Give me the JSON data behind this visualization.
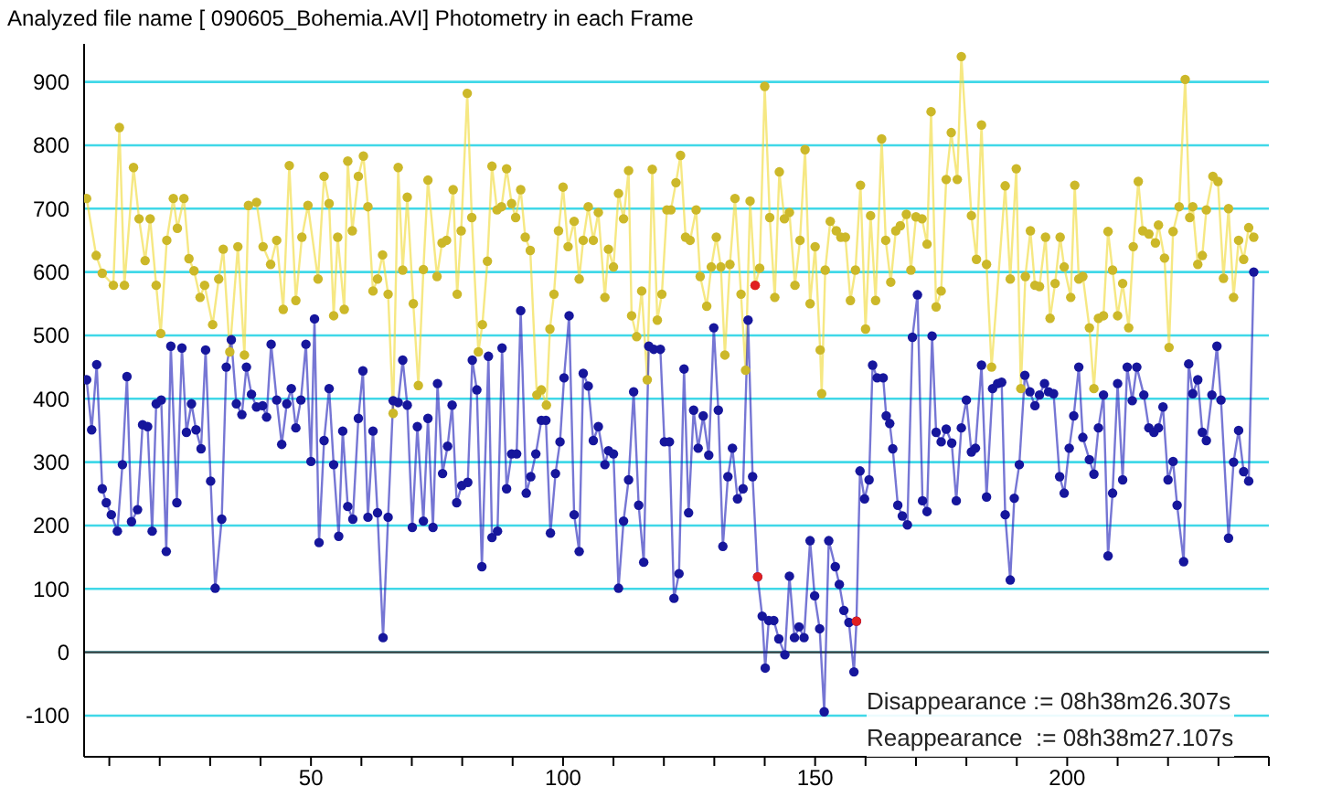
{
  "chart_data": {
    "type": "line",
    "title": "Analyzed file name [ 090605_Bohemia.AVI]   Photometry in each Frame",
    "xlim": [
      5,
      240
    ],
    "xticks": [
      {
        "value": 10,
        "label": null
      },
      {
        "value": 20,
        "label": null
      },
      {
        "value": 30,
        "label": null
      },
      {
        "value": 40,
        "label": null
      },
      50,
      {
        "value": 60,
        "label": null
      },
      {
        "value": 70,
        "label": null
      },
      {
        "value": 80,
        "label": null
      },
      {
        "value": 90,
        "label": null
      },
      100,
      {
        "value": 110,
        "label": null
      },
      {
        "value": 120,
        "label": null
      },
      {
        "value": 130,
        "label": null
      },
      {
        "value": 140,
        "label": null
      },
      150,
      {
        "value": 160,
        "label": null
      },
      {
        "value": 170,
        "label": null
      },
      {
        "value": 180,
        "label": null
      },
      {
        "value": 190,
        "label": null
      },
      200,
      {
        "value": 210,
        "label": null
      },
      {
        "value": 220,
        "label": null
      },
      {
        "value": 230,
        "label": null
      },
      {
        "value": 240,
        "label": null
      }
    ],
    "ylim": [
      -165,
      960
    ],
    "yticks": [
      -100,
      0,
      100,
      200,
      300,
      400,
      500,
      600,
      700,
      800,
      900
    ],
    "grid": "y",
    "marker": "circle",
    "line_style": "solid",
    "ref_lines": [
      {
        "axis": "y",
        "value": 0,
        "color": "#404040"
      }
    ],
    "annotations": [
      "Disappearance := 08h38m26.307s",
      "Reappearance  := 08h38m27.107s"
    ],
    "series": [
      {
        "color": "#f0d830",
        "x": [
          5.5,
          7.4,
          8.6,
          10.8,
          12,
          13,
          14.8,
          15.9,
          17.1,
          18.1,
          19.3,
          20.2,
          21.4,
          22.7,
          23.5,
          24.8,
          25.8,
          26.8,
          28,
          28.9,
          30.5,
          31.7,
          32.6,
          33.9,
          35.5,
          36.8,
          37.6,
          39.2,
          40.5,
          42,
          43.2,
          44.5,
          45.7,
          47,
          48.2,
          49.4,
          51.4,
          52.6,
          53.6,
          54.5,
          55.3,
          56.6,
          57.3,
          58.2,
          59.4,
          60.4,
          61.3,
          62.3,
          63.2,
          64.2,
          65.3,
          66.3,
          67.3,
          68.2,
          69.1,
          70.3,
          71.3,
          72.3,
          73.2,
          75,
          76,
          76.9,
          78.2,
          79,
          79.8,
          81,
          81.9,
          83.2,
          84,
          85,
          85.9,
          86.9,
          87.8,
          88.8,
          89.8,
          90.6,
          91.6,
          92.5,
          93.5,
          94.8,
          95.7,
          96.7,
          97.4,
          98.2,
          99.1,
          100,
          101,
          102.2,
          103.2,
          104,
          105,
          106,
          107,
          108.3,
          109,
          110,
          111,
          112,
          113,
          113.6,
          114.6,
          115.6,
          116.7,
          117.7,
          118.7,
          119.6,
          120.6,
          121.4,
          122.4,
          123.3,
          124.3,
          125.2,
          126.4,
          127.2,
          128.5,
          129.4,
          130.4,
          131.3,
          132.1,
          133.1,
          134.1,
          135.3,
          136.2,
          137.1,
          138.1,
          139,
          140,
          141,
          142,
          142.9,
          143.9,
          144.9,
          146,
          147,
          148,
          149,
          150,
          151,
          151.3,
          152,
          153,
          154.2,
          155.1,
          156,
          157,
          158,
          159,
          160,
          161,
          162,
          163.2,
          164,
          165,
          166,
          166.9,
          168.1,
          169,
          170,
          171.2,
          172.2,
          173,
          174,
          175,
          176,
          177,
          178.2,
          179,
          181,
          182,
          183,
          184,
          185,
          187.7,
          188.7,
          189.9,
          190.8,
          191.7,
          192.7,
          193.6,
          194.5,
          195.7,
          196.6,
          197.6,
          198.6,
          199.4,
          200.7,
          201.5,
          202.3,
          203.1,
          204.4,
          205.3,
          206.2,
          207.2,
          208.1,
          209,
          210,
          211,
          212.2,
          213.1,
          214.1,
          215,
          216.2,
          217.5,
          218.1,
          219.3,
          220.2,
          221,
          222.2,
          223.4,
          224.3,
          224.9,
          225.9,
          226.8,
          227.6,
          228.9,
          229.9,
          231,
          232,
          233,
          234,
          235,
          236,
          237
        ],
        "values": [
          716,
          626,
          598,
          579,
          828,
          579,
          765,
          684,
          618,
          684,
          579,
          503,
          650,
          716,
          669,
          716,
          621,
          602,
          560,
          579,
          517,
          589,
          636,
          474,
          640,
          469,
          705,
          710,
          640,
          612,
          650,
          541,
          768,
          555,
          655,
          705,
          589,
          751,
          708,
          531,
          655,
          541,
          775,
          665,
          751,
          783,
          703,
          570,
          589,
          627,
          565,
          377,
          765,
          603,
          718,
          550,
          421,
          604,
          745,
          593,
          646,
          650,
          730,
          565,
          665,
          882,
          686,
          474,
          517,
          617,
          767,
          698,
          703,
          763,
          708,
          686,
          730,
          655,
          634,
          406,
          414,
          390,
          510,
          565,
          665,
          734,
          640,
          680,
          589,
          650,
          703,
          650,
          694,
          560,
          636,
          608,
          724,
          684,
          760,
          531,
          498,
          570,
          430,
          762,
          524,
          565,
          698,
          698,
          741,
          784,
          655,
          650,
          698,
          593,
          546,
          608,
          655,
          608,
          469,
          612,
          716,
          565,
          445,
          712,
          579,
          606,
          893,
          686,
          560,
          758,
          684,
          694,
          579,
          650,
          793,
          550,
          640,
          477,
          408,
          603,
          680,
          665,
          655,
          655,
          555,
          603,
          737,
          510,
          689,
          555,
          810,
          650,
          584,
          665,
          673,
          691,
          603,
          687,
          684,
          644,
          853,
          545,
          570,
          746,
          820,
          746,
          940,
          689,
          620,
          832,
          612,
          450,
          736,
          589,
          763,
          416,
          593,
          665,
          579,
          577,
          655,
          527,
          582,
          655,
          608,
          560,
          737,
          589,
          593,
          512,
          416,
          527,
          531,
          664,
          603,
          531,
          582,
          512,
          640,
          743,
          665,
          660,
          646,
          674,
          622,
          481,
          664,
          703,
          904,
          686,
          703,
          612,
          626,
          698,
          751,
          743,
          590,
          700,
          560,
          650,
          620,
          670,
          655
        ]
      },
      {
        "color": "#1a1ab8",
        "x": [
          5.5,
          6.5,
          7.5,
          8.6,
          9.4,
          10.4,
          11.6,
          12.6,
          13.5,
          14.4,
          15.6,
          16.6,
          17.6,
          18.5,
          19.3,
          20.3,
          21.3,
          22.2,
          23.4,
          24.4,
          25.3,
          26.3,
          27.2,
          28.2,
          29.1,
          30.1,
          31,
          32.3,
          33.2,
          34.2,
          35.2,
          36.3,
          37.2,
          38.2,
          39.2,
          40.4,
          41.2,
          42.1,
          43.2,
          44.2,
          45.2,
          46.1,
          47,
          48,
          49,
          50,
          50.7,
          51.6,
          52.6,
          53.6,
          54.5,
          55.5,
          56.3,
          57.3,
          58.3,
          59.4,
          60.3,
          61.3,
          62.3,
          63.2,
          64.3,
          65.3,
          66.3,
          67.3,
          68.2,
          69.1,
          70.1,
          71.1,
          72.3,
          73.2,
          74.2,
          75.1,
          76.1,
          77.1,
          78,
          78.9,
          79.9,
          81.1,
          82,
          82.9,
          83.9,
          85.2,
          85.9,
          87,
          87.9,
          88.8,
          89.8,
          90.8,
          91.6,
          92.7,
          93.6,
          94.6,
          95.7,
          96.6,
          97.5,
          98.5,
          99.4,
          100.2,
          101.2,
          102.2,
          103.2,
          104,
          105,
          106,
          107,
          108.3,
          109,
          110,
          111,
          112,
          113,
          114,
          115,
          116,
          117,
          118,
          119.3,
          120.1,
          121.1,
          122,
          123,
          124,
          124.9,
          125.9,
          126.8,
          127.8,
          128.9,
          129.9,
          130.8,
          131.7,
          132.7,
          133.6,
          134.6,
          135.7,
          136.7,
          137.6,
          138.6,
          139.5,
          140.1,
          140.8,
          141.8,
          142.8,
          144,
          144.9,
          145.9,
          146.8,
          147.8,
          149,
          149.9,
          150.9,
          151.8,
          152.7,
          154,
          154.8,
          155.7,
          156.7,
          157.7,
          158.2,
          158.9,
          159.8,
          160.7,
          161.4,
          162.3,
          163.5,
          164.1,
          164.8,
          165.4,
          166.4,
          167.3,
          168.3,
          169.3,
          170.3,
          171.3,
          172.2,
          173.2,
          174,
          175,
          176,
          177.1,
          178,
          179,
          180,
          181,
          181.8,
          183,
          184,
          185.2,
          186.2,
          187,
          187.7,
          188.7,
          189.5,
          190.5,
          191.6,
          192.6,
          193.6,
          194.5,
          195.5,
          196.3,
          197.3,
          198.5,
          199.4,
          200.4,
          201.3,
          202.3,
          203.1,
          204.4,
          205.3,
          206.2,
          207.2,
          208.1,
          209,
          210,
          211,
          211.9,
          212.9,
          213.8,
          215.2,
          216.2,
          217.2,
          218.1,
          219,
          220,
          221,
          221.8,
          223.1,
          224.1,
          224.9,
          225.9,
          226.8,
          227.6,
          228.7,
          229.7,
          230.5,
          232,
          233,
          234,
          235,
          236,
          237
        ],
        "values": [
          430,
          351,
          454,
          258,
          236,
          217,
          191,
          296,
          435,
          206,
          225,
          359,
          356,
          191,
          392,
          398,
          159,
          483,
          236,
          480,
          347,
          392,
          351,
          321,
          477,
          270,
          101,
          210,
          450,
          493,
          392,
          375,
          450,
          407,
          387,
          389,
          371,
          486,
          398,
          328,
          392,
          416,
          354,
          398,
          486,
          301,
          526,
          173,
          334,
          416,
          296,
          183,
          349,
          230,
          210,
          369,
          444,
          213,
          349,
          220,
          23,
          213,
          397,
          394,
          461,
          390,
          197,
          356,
          207,
          369,
          197,
          424,
          282,
          325,
          390,
          236,
          263,
          268,
          461,
          414,
          135,
          467,
          181,
          191,
          480,
          258,
          313,
          313,
          539,
          251,
          277,
          313,
          366,
          366,
          188,
          282,
          332,
          433,
          531,
          217,
          159,
          440,
          420,
          334,
          356,
          296,
          318,
          313,
          101,
          207,
          272,
          411,
          232,
          142,
          483,
          478,
          478,
          332,
          332,
          85,
          124,
          447,
          220,
          382,
          322,
          373,
          311,
          512,
          382,
          167,
          277,
          322,
          242,
          258,
          524,
          277,
          119,
          57,
          -25,
          50,
          50,
          21,
          -4,
          120,
          23,
          40,
          23,
          176,
          89,
          37,
          -94,
          176,
          135,
          107,
          66,
          47,
          -31,
          49,
          286,
          242,
          272,
          453,
          433,
          433,
          373,
          361,
          321,
          232,
          215,
          201,
          497,
          564,
          239,
          222,
          499,
          347,
          332,
          352,
          330,
          239,
          354,
          398,
          316,
          322,
          453,
          245,
          416,
          424,
          426,
          217,
          114,
          243,
          296,
          437,
          411,
          389,
          406,
          424,
          411,
          408,
          277,
          251,
          322,
          373,
          450,
          339,
          304,
          281,
          354,
          406,
          152,
          251,
          424,
          272,
          450,
          397,
          450,
          406,
          354,
          347,
          354,
          387,
          272,
          301,
          232,
          143,
          455,
          408,
          430,
          347,
          334,
          406,
          483,
          398,
          180,
          300,
          350,
          285,
          270,
          600
        ]
      },
      {
        "type": "scatter",
        "color": "#e02020",
        "x": [
          138.1,
          138.6,
          158.2
        ],
        "values": [
          579,
          119,
          49
        ]
      }
    ]
  }
}
